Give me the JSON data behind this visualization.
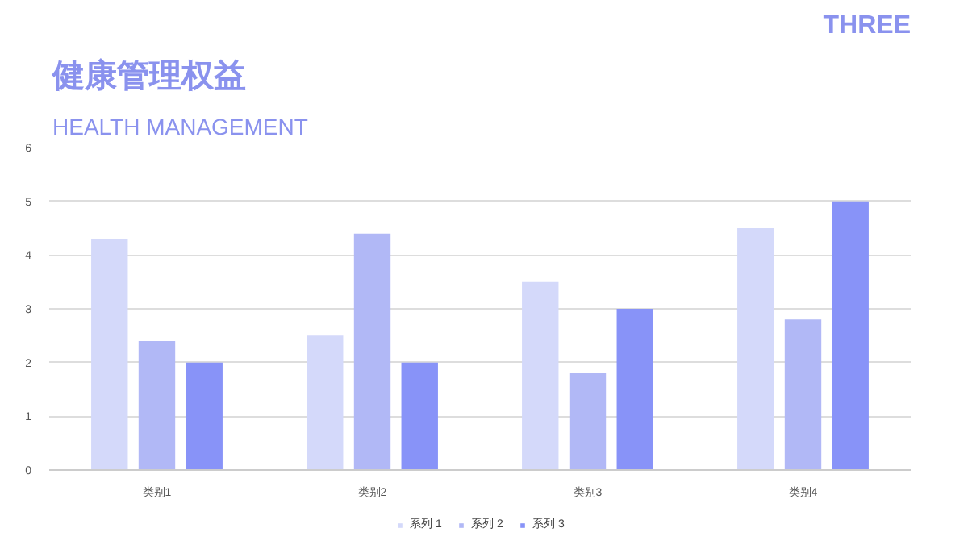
{
  "chart_data": {
    "type": "bar",
    "title": "健康管理权益",
    "subtitle": "HEALTH MANAGEMENT",
    "annotations": [
      "THREE"
    ],
    "categories": [
      "类别1",
      "类别2",
      "类别3",
      "类别4"
    ],
    "series": [
      {
        "name": "系列 1",
        "color": "#d4d9fa",
        "values": [
          4.3,
          2.5,
          3.5,
          4.5
        ]
      },
      {
        "name": "系列 2",
        "color": "#b1b8f6",
        "values": [
          2.4,
          4.4,
          1.8,
          2.8
        ]
      },
      {
        "name": "系列 3",
        "color": "#8893f8",
        "values": [
          2,
          2,
          3,
          5
        ]
      }
    ],
    "ylim": [
      0,
      6
    ],
    "yticks": [
      0,
      1,
      2,
      3,
      4,
      5,
      6
    ],
    "grid": "y",
    "legend": "bottom"
  }
}
